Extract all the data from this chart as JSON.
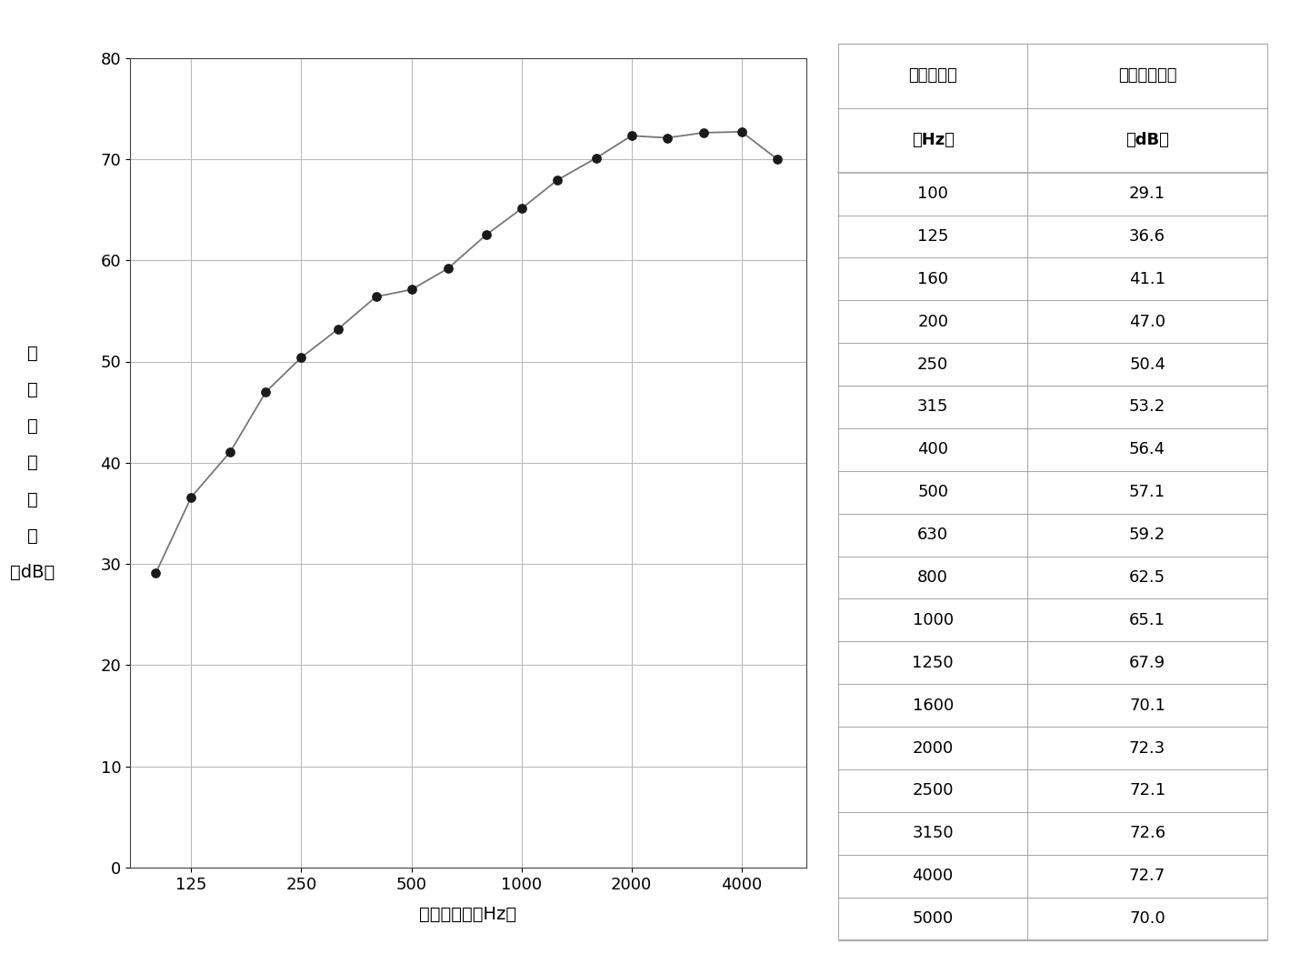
{
  "frequencies": [
    100,
    125,
    160,
    200,
    250,
    315,
    400,
    500,
    630,
    800,
    1000,
    1250,
    1600,
    2000,
    2500,
    3150,
    4000,
    5000
  ],
  "tl_values": [
    29.1,
    36.6,
    41.1,
    47.0,
    50.4,
    53.2,
    56.4,
    57.1,
    59.2,
    62.5,
    65.1,
    67.9,
    70.1,
    72.3,
    72.1,
    72.6,
    72.7,
    70.0
  ],
  "x_ticks": [
    125,
    250,
    500,
    1000,
    2000,
    4000
  ],
  "x_label": "中心周波数（Hz）",
  "y_label_lines": [
    "音",
    "響",
    "透",
    "過",
    "損",
    "失",
    "（dB）"
  ],
  "y_ticks": [
    0,
    10,
    20,
    30,
    40,
    50,
    60,
    70,
    80
  ],
  "y_lim": [
    0,
    80
  ],
  "table_header_col1_line1": "中心周波数",
  "table_header_col1_line2": "（Hz）",
  "table_header_col2_line1": "音響透過損失",
  "table_header_col2_line2": "（dB）",
  "line_color": "#777777",
  "marker_color": "#1a1a1a",
  "grid_color": "#bbbbbb",
  "table_line_color": "#aaaaaa",
  "background_color": "#ffffff"
}
